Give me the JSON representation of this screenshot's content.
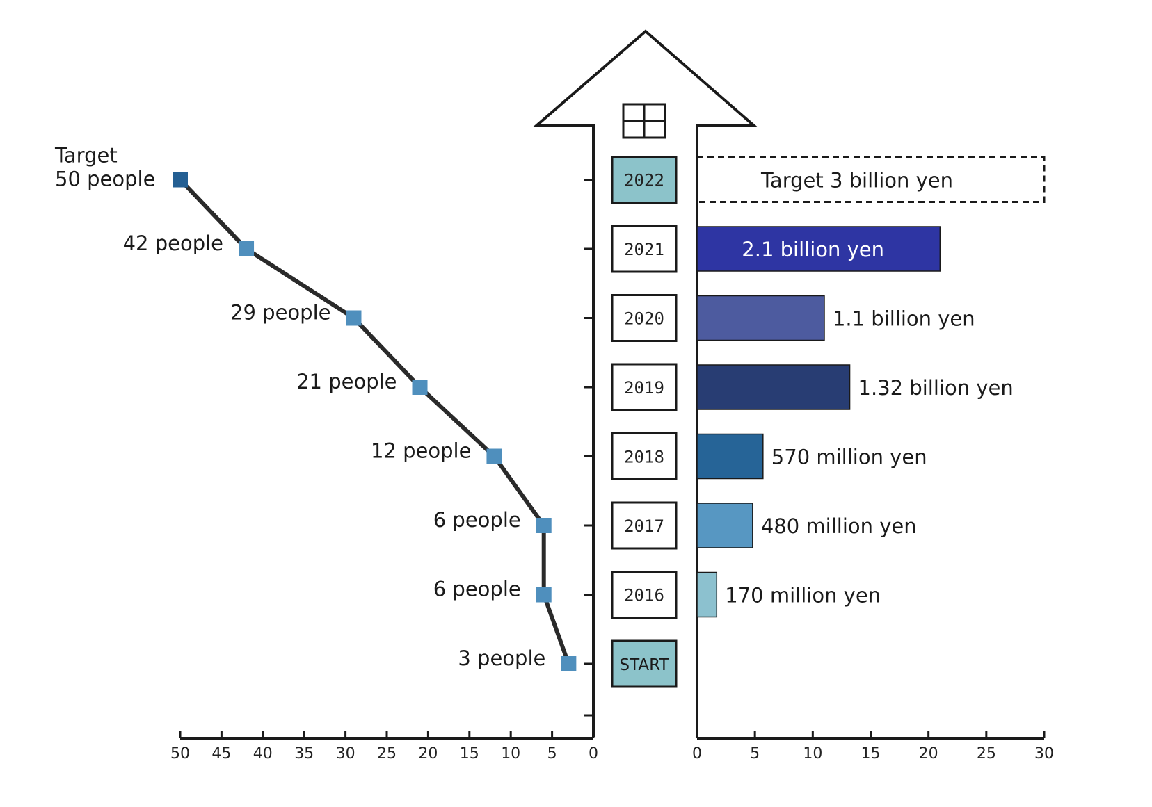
{
  "chart_data": [
    {
      "type": "line",
      "title": "",
      "xlabel": "",
      "ylabel": "",
      "xlim": [
        50,
        0
      ],
      "x_ticks": [
        "50",
        "45",
        "40",
        "35",
        "30",
        "25",
        "20",
        "15",
        "10",
        "5",
        "0"
      ],
      "categories": [
        "START",
        "2016",
        "2017",
        "2018",
        "2019",
        "2020",
        "2021",
        "2022"
      ],
      "values": [
        3,
        6,
        6,
        12,
        21,
        29,
        42,
        50
      ],
      "point_labels": [
        "3 people",
        "6 people",
        "6 people",
        "12 people",
        "21 people",
        "29 people",
        "42 people",
        "50 people"
      ],
      "target_prefix": "Target",
      "colors": {
        "line": "#2a2a2a",
        "marker": "#4f8fbd",
        "marker_target": "#245f93"
      }
    },
    {
      "type": "bar",
      "title": "",
      "xlabel": "",
      "ylabel": "",
      "xlim": [
        0,
        30
      ],
      "x_ticks": [
        "0",
        "5",
        "10",
        "15",
        "20",
        "25",
        "30"
      ],
      "categories": [
        "2016",
        "2017",
        "2018",
        "2019",
        "2020",
        "2021",
        "2022"
      ],
      "values": [
        1.7,
        4.8,
        5.7,
        13.2,
        11,
        21,
        30
      ],
      "bar_labels": [
        "170 million yen",
        "480 million yen",
        "570 million yen",
        "1.32 billion yen",
        "1.1 billion yen",
        "2.1 billion yen",
        "Target 3 billion yen"
      ],
      "colors": [
        "#8cc1cf",
        "#5797c2",
        "#266497",
        "#283d73",
        "#4d5b9f",
        "#2e35a3",
        "none"
      ],
      "target_last": true
    }
  ]
}
